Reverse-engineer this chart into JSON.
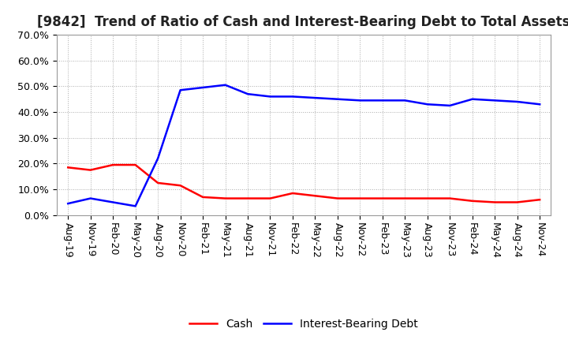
{
  "title": "[9842]  Trend of Ratio of Cash and Interest-Bearing Debt to Total Assets",
  "x_labels": [
    "Aug-19",
    "Nov-19",
    "Feb-20",
    "May-20",
    "Aug-20",
    "Nov-20",
    "Feb-21",
    "May-21",
    "Aug-21",
    "Nov-21",
    "Feb-22",
    "May-22",
    "Aug-22",
    "Nov-22",
    "Feb-23",
    "May-23",
    "Aug-23",
    "Nov-23",
    "Feb-24",
    "May-24",
    "Aug-24",
    "Nov-24"
  ],
  "cash": [
    18.5,
    17.5,
    19.5,
    19.5,
    12.5,
    11.5,
    7.0,
    6.5,
    6.5,
    6.5,
    8.5,
    7.5,
    6.5,
    6.5,
    6.5,
    6.5,
    6.5,
    6.5,
    5.5,
    5.0,
    5.0,
    6.0
  ],
  "ibd": [
    4.5,
    6.5,
    5.0,
    3.5,
    22.0,
    48.5,
    49.5,
    50.5,
    47.0,
    46.0,
    46.0,
    45.5,
    45.0,
    44.5,
    44.5,
    44.5,
    43.0,
    42.5,
    45.0,
    44.5,
    44.0,
    43.0
  ],
  "cash_color": "#ff0000",
  "ibd_color": "#0000ff",
  "ylim": [
    0,
    70
  ],
  "yticks": [
    0,
    10,
    20,
    30,
    40,
    50,
    60,
    70
  ],
  "grid_color": "#aaaaaa",
  "background_color": "#ffffff",
  "legend_cash": "Cash",
  "legend_ibd": "Interest-Bearing Debt",
  "title_fontsize": 12,
  "tick_fontsize": 9,
  "line_width": 1.8
}
